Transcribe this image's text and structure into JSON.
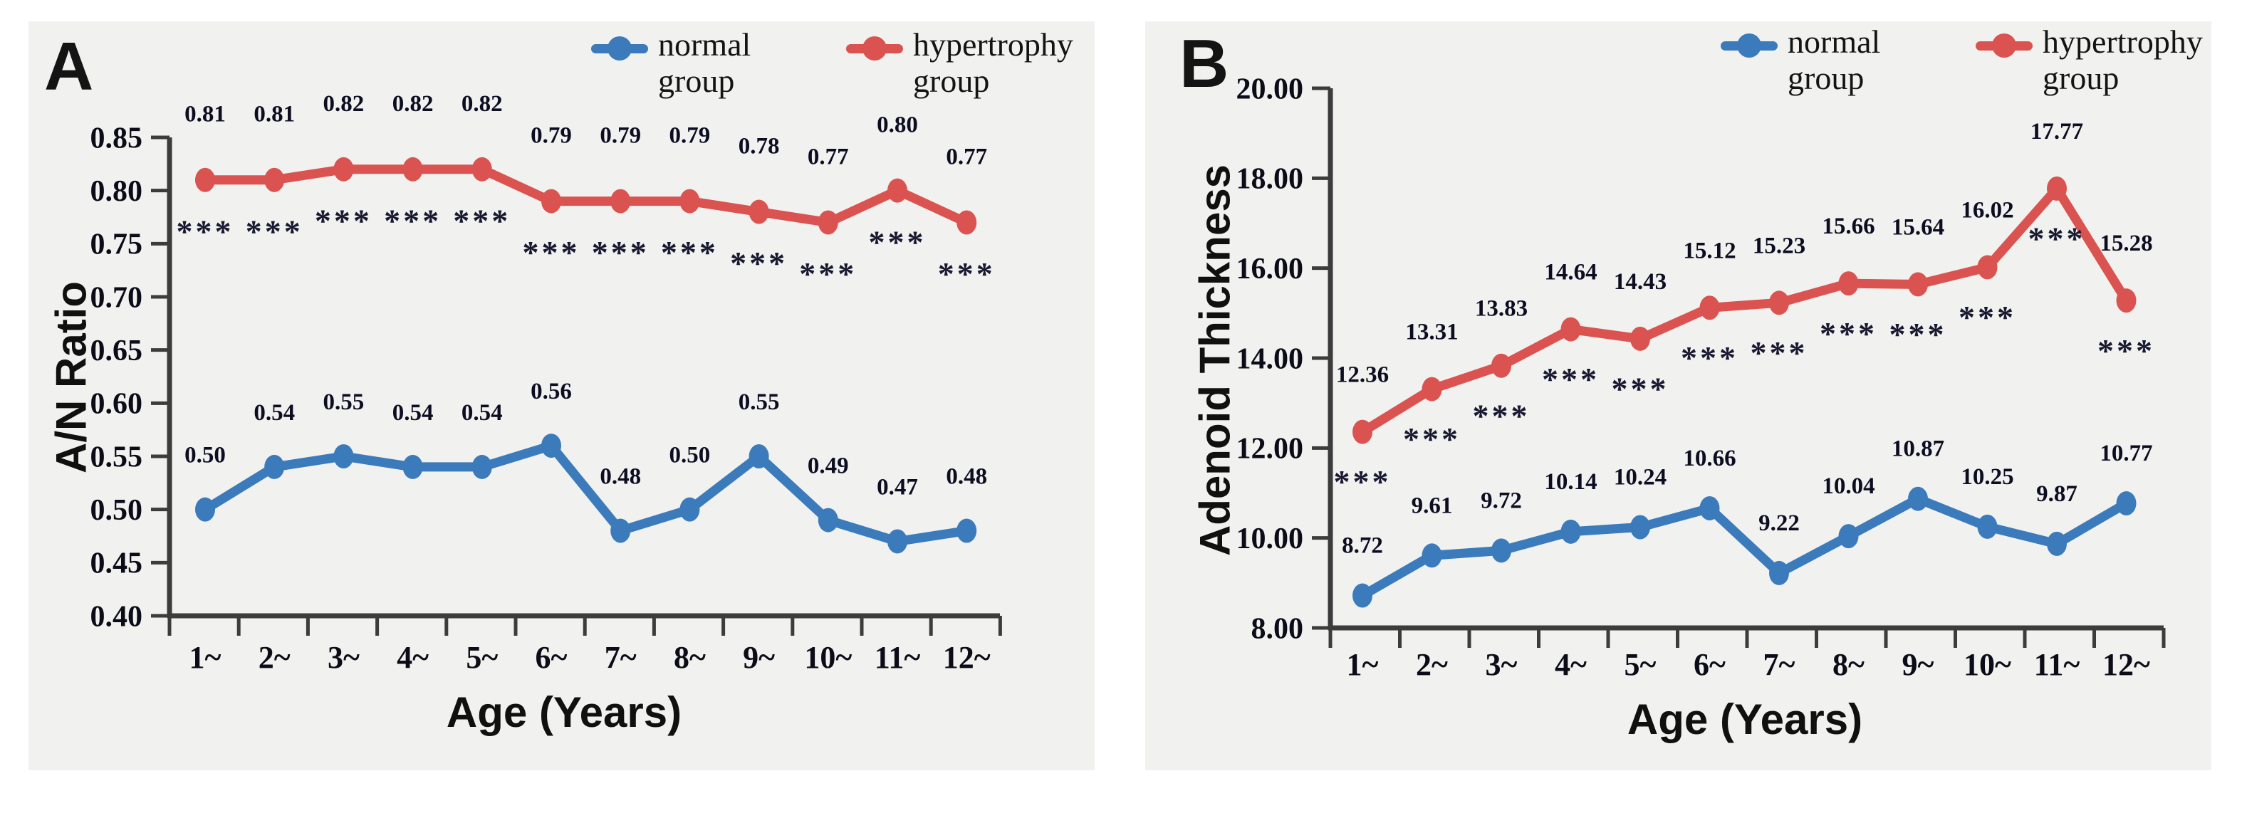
{
  "figure": {
    "background": "#ffffff",
    "panel_background": "#f1f1ef",
    "normal_color": "#3b7bbb",
    "hypertrophy_color": "#da5350"
  },
  "panels": [
    {
      "panel_label": "A",
      "y_axis_title": "A/N Ratio",
      "x_axis_title": "Age (Years)"
    },
    {
      "panel_label": "B",
      "y_axis_title": "Adenoid Thickness",
      "x_axis_title": "Age (Years)"
    }
  ],
  "chart_data": [
    {
      "type": "line",
      "panel": "A",
      "title": "",
      "xlabel": "Age (Years)",
      "ylabel": "A/N Ratio",
      "categories": [
        "1~",
        "2~",
        "3~",
        "4~",
        "5~",
        "6~",
        "7~",
        "8~",
        "9~",
        "10~",
        "11~",
        "12~"
      ],
      "ylim": [
        0.4,
        0.85
      ],
      "yticks": [
        "0.85",
        "0.80",
        "0.75",
        "0.70",
        "0.65",
        "0.60",
        "0.55",
        "0.50",
        "0.45",
        "0.40"
      ],
      "grid": false,
      "legend_position": "top",
      "series": [
        {
          "name": "normal group",
          "color": "#3b7bbb",
          "values": [
            0.5,
            0.54,
            0.55,
            0.54,
            0.54,
            0.56,
            0.48,
            0.5,
            0.55,
            0.49,
            0.47,
            0.48
          ],
          "point_labels": [
            "0.50",
            "0.54",
            "0.55",
            "0.54",
            "0.54",
            "0.56",
            "0.48",
            "0.50",
            "0.55",
            "0.49",
            "0.47",
            "0.48"
          ],
          "significance": [
            "",
            "",
            "",
            "",
            "",
            "",
            "",
            "",
            "",
            "",
            "",
            ""
          ]
        },
        {
          "name": "hypertrophy group",
          "color": "#da5350",
          "values": [
            0.81,
            0.81,
            0.82,
            0.82,
            0.82,
            0.79,
            0.79,
            0.79,
            0.78,
            0.77,
            0.8,
            0.77
          ],
          "point_labels": [
            "0.81",
            "0.81",
            "0.82",
            "0.82",
            "0.82",
            "0.79",
            "0.79",
            "0.79",
            "0.78",
            "0.77",
            "0.80",
            "0.77"
          ],
          "significance": [
            "***",
            "***",
            "***",
            "***",
            "***",
            "***",
            "***",
            "***",
            "***",
            "***",
            "***",
            "***"
          ]
        }
      ]
    },
    {
      "type": "line",
      "panel": "B",
      "title": "",
      "xlabel": "Age (Years)",
      "ylabel": "Adenoid Thickness",
      "categories": [
        "1~",
        "2~",
        "3~",
        "4~",
        "5~",
        "6~",
        "7~",
        "8~",
        "9~",
        "10~",
        "11~",
        "12~"
      ],
      "ylim": [
        8.0,
        20.0
      ],
      "yticks": [
        "20.00",
        "18.00",
        "16.00",
        "14.00",
        "12.00",
        "10.00",
        "8.00"
      ],
      "grid": false,
      "legend_position": "top",
      "series": [
        {
          "name": "normal group",
          "color": "#3b7bbb",
          "values": [
            8.72,
            9.61,
            9.72,
            10.14,
            10.24,
            10.66,
            9.22,
            10.04,
            10.87,
            10.25,
            9.87,
            10.77
          ],
          "point_labels": [
            "8.72",
            "9.61",
            "9.72",
            "10.14",
            "10.24",
            "10.66",
            "9.22",
            "10.04",
            "10.87",
            "10.25",
            "9.87",
            "10.77"
          ],
          "significance": [
            "",
            "",
            "",
            "",
            "",
            "",
            "",
            "",
            "",
            "",
            "",
            ""
          ]
        },
        {
          "name": "hypertrophy group",
          "color": "#da5350",
          "values": [
            12.36,
            13.31,
            13.83,
            14.64,
            14.43,
            15.12,
            15.23,
            15.66,
            15.64,
            16.02,
            17.77,
            15.28
          ],
          "point_labels": [
            "12.36",
            "13.31",
            "13.83",
            "14.64",
            "14.43",
            "15.12",
            "15.23",
            "15.66",
            "15.64",
            "16.02",
            "17.77",
            "15.28"
          ],
          "significance": [
            "***",
            "***",
            "***",
            "***",
            "***",
            "***",
            "***",
            "***",
            "***",
            "***",
            "***",
            "***"
          ]
        }
      ]
    }
  ]
}
